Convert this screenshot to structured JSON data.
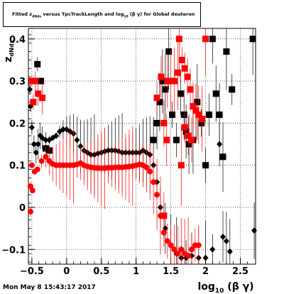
{
  "title_parts": {
    "pre": "Fitted  z",
    "sub1": "dNdx",
    "mid": " versus TpcTrackLength and log",
    "sub2": "10",
    "post": " (β γ) for Global deuteron"
  },
  "footer_text": "Mon May  8 15:43:17 2017",
  "chart_data": {
    "type": "scatter",
    "title": "Fitted  z_dNdx versus TpcTrackLength and log_10 (β γ) for Global deuteron",
    "xlabel": "log_10 (β γ)",
    "ylabel": "z_dNdx",
    "xlim": [
      -0.55,
      2.72
    ],
    "ylim": [
      -0.135,
      0.425
    ],
    "grid": true,
    "x_ticks": [
      -0.5,
      0,
      0.5,
      1,
      1.5,
      2,
      2.5
    ],
    "x_tick_labels": [
      "−0.5",
      "0",
      "0.5",
      "1",
      "1.5",
      "2",
      "2.5"
    ],
    "y_ticks": [
      -0.1,
      0,
      0.1,
      0.2,
      0.3,
      0.4
    ],
    "y_tick_labels": [
      "−0.1",
      "0",
      "0.1",
      "0.2",
      "0.3",
      "0.4"
    ],
    "colors": {
      "black_series": "#000000",
      "red_series": "#ff0000"
    },
    "series": [
      {
        "marker": "diamond",
        "color": "#000000",
        "points": [
          [
            -0.53,
            0.28
          ],
          [
            -0.52,
            0.24
          ],
          [
            -0.5,
            0.19
          ],
          [
            -0.47,
            0.15
          ],
          [
            -0.44,
            0.13
          ],
          [
            -0.41,
            0.15
          ],
          [
            -0.38,
            0.17
          ],
          [
            -0.35,
            0.165
          ],
          [
            -0.3,
            0.16
          ],
          [
            -0.25,
            0.16
          ],
          [
            -0.2,
            0.165
          ],
          [
            -0.15,
            0.17
          ],
          [
            -0.1,
            0.18
          ],
          [
            -0.05,
            0.185
          ],
          [
            0.0,
            0.185
          ],
          [
            0.05,
            0.18
          ],
          [
            0.1,
            0.175
          ],
          [
            0.15,
            0.16
          ],
          [
            0.2,
            0.145
          ],
          [
            0.25,
            0.135
          ],
          [
            0.3,
            0.13
          ],
          [
            0.35,
            0.125
          ],
          [
            0.4,
            0.125
          ],
          [
            0.45,
            0.128
          ],
          [
            0.5,
            0.13
          ],
          [
            0.55,
            0.133
          ],
          [
            0.6,
            0.135
          ],
          [
            0.65,
            0.135
          ],
          [
            0.7,
            0.135
          ],
          [
            0.75,
            0.133
          ],
          [
            0.8,
            0.13
          ],
          [
            0.85,
            0.13
          ],
          [
            0.9,
            0.13
          ],
          [
            0.95,
            0.13
          ],
          [
            1.0,
            0.13
          ],
          [
            1.05,
            0.13
          ],
          [
            1.1,
            0.135
          ],
          [
            1.15,
            0.13
          ],
          [
            1.2,
            0.125
          ],
          [
            1.25,
            0.1
          ],
          [
            1.3,
            0.06
          ],
          [
            1.35,
            0.0
          ],
          [
            1.42,
            -0.05
          ],
          [
            1.5,
            -0.09
          ],
          [
            1.58,
            -0.11
          ],
          [
            1.65,
            -0.12
          ],
          [
            1.72,
            -0.12
          ],
          [
            1.8,
            -0.115
          ],
          [
            1.9,
            -0.12
          ],
          [
            2.0,
            -0.12
          ],
          [
            2.1,
            -0.1
          ],
          [
            2.2,
            0.15
          ],
          [
            2.25,
            -0.07
          ],
          [
            2.3,
            -0.08
          ],
          [
            2.35,
            -0.105
          ],
          [
            2.7,
            -0.055
          ]
        ]
      },
      {
        "marker": "square",
        "color": "#000000",
        "points": [
          [
            -0.42,
            0.34
          ],
          [
            -0.37,
            0.3
          ],
          [
            -0.3,
            0.14
          ],
          [
            -0.25,
            0.135
          ],
          [
            1.25,
            0.16
          ],
          [
            1.3,
            0.2
          ],
          [
            1.34,
            0.25
          ],
          [
            1.38,
            0.3
          ],
          [
            1.42,
            0.28
          ],
          [
            1.47,
            0.37
          ],
          [
            1.52,
            0.22
          ],
          [
            1.58,
            0.16
          ],
          [
            1.64,
            0.27
          ],
          [
            1.69,
            0.22
          ],
          [
            1.72,
            0.18
          ],
          [
            1.76,
            0.15
          ],
          [
            1.82,
            0.16
          ],
          [
            1.88,
            0.25
          ],
          [
            1.94,
            0.2
          ],
          [
            2.0,
            0.1
          ],
          [
            2.05,
            0.22
          ],
          [
            2.1,
            0.4
          ],
          [
            2.15,
            0.27
          ],
          [
            2.2,
            0.22
          ],
          [
            2.25,
            0.12
          ],
          [
            2.3,
            0.37
          ],
          [
            2.38,
            0.28
          ],
          [
            2.68,
            0.4
          ]
        ]
      },
      {
        "marker": "circle",
        "color": "#ff0000",
        "points": [
          [
            -0.5,
            0.1
          ],
          [
            -0.46,
            0.085
          ],
          [
            -0.42,
            0.09
          ],
          [
            -0.36,
            0.11
          ],
          [
            -0.3,
            0.12
          ],
          [
            -0.25,
            0.11
          ],
          [
            -0.2,
            0.103
          ],
          [
            -0.15,
            0.1
          ],
          [
            -0.1,
            0.1
          ],
          [
            -0.05,
            0.1
          ],
          [
            0.0,
            0.1
          ],
          [
            0.05,
            0.1
          ],
          [
            0.1,
            0.1
          ],
          [
            0.15,
            0.102
          ],
          [
            0.2,
            0.105
          ],
          [
            0.25,
            0.1
          ],
          [
            0.3,
            0.097
          ],
          [
            0.35,
            0.095
          ],
          [
            0.4,
            0.094
          ],
          [
            0.45,
            0.093
          ],
          [
            0.5,
            0.093
          ],
          [
            0.55,
            0.093
          ],
          [
            0.6,
            0.094
          ],
          [
            0.65,
            0.094
          ],
          [
            0.7,
            0.095
          ],
          [
            0.75,
            0.095
          ],
          [
            0.8,
            0.095
          ],
          [
            0.85,
            0.096
          ],
          [
            0.9,
            0.097
          ],
          [
            0.95,
            0.098
          ],
          [
            1.0,
            0.1
          ],
          [
            1.05,
            0.102
          ],
          [
            1.1,
            0.1
          ],
          [
            1.15,
            0.095
          ],
          [
            1.2,
            0.085
          ],
          [
            1.25,
            0.06
          ],
          [
            1.3,
            0.03
          ],
          [
            1.35,
            -0.02
          ],
          [
            1.4,
            -0.06
          ],
          [
            1.45,
            -0.08
          ],
          [
            1.5,
            -0.09
          ],
          [
            1.55,
            -0.1
          ],
          [
            1.6,
            -0.11
          ],
          [
            1.65,
            -0.1
          ],
          [
            1.7,
            -0.11
          ],
          [
            1.75,
            -0.115
          ],
          [
            1.8,
            -0.1
          ],
          [
            1.85,
            -0.09
          ],
          [
            1.9,
            -0.09
          ],
          [
            -0.52,
            0.05
          ],
          [
            -0.49,
            0.04
          ],
          [
            -0.52,
            -0.01
          ]
        ]
      },
      {
        "marker": "square",
        "color": "#ff0000",
        "points": [
          [
            -0.5,
            0.3
          ],
          [
            -0.45,
            0.3
          ],
          [
            -0.41,
            0.27
          ],
          [
            -0.35,
            0.26
          ],
          [
            -0.48,
            0.25
          ],
          [
            1.3,
            0.26
          ],
          [
            1.36,
            0.31
          ],
          [
            1.4,
            0.2
          ],
          [
            1.44,
            0.16
          ],
          [
            1.5,
            0.3
          ],
          [
            1.55,
            0.3
          ],
          [
            1.6,
            0.32
          ],
          [
            1.62,
            0.4
          ],
          [
            1.66,
            0.35
          ],
          [
            1.7,
            0.33
          ],
          [
            1.74,
            0.31
          ],
          [
            1.78,
            0.28
          ],
          [
            1.82,
            0.24
          ],
          [
            1.86,
            0.23
          ],
          [
            1.9,
            0.22
          ],
          [
            1.95,
            0.21
          ],
          [
            2.0,
            0.4
          ],
          [
            1.7,
            0.19
          ],
          [
            1.75,
            0.17
          ],
          [
            1.8,
            0.16
          ],
          [
            1.65,
            0.1
          ],
          [
            1.4,
            -0.02
          ],
          [
            1.45,
            0.3
          ]
        ]
      }
    ]
  }
}
